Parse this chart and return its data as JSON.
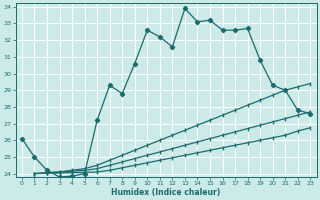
{
  "xlabel": "Humidex (Indice chaleur)",
  "bg_color": "#cceae8",
  "grid_color": "#ffffff",
  "line_color": "#1a6b6b",
  "xlim": [
    -0.5,
    23.5
  ],
  "ylim": [
    23.8,
    34.2
  ],
  "xticks": [
    0,
    1,
    2,
    3,
    4,
    5,
    6,
    7,
    8,
    9,
    10,
    11,
    12,
    13,
    14,
    15,
    16,
    17,
    18,
    19,
    20,
    21,
    22,
    23
  ],
  "yticks": [
    24,
    25,
    26,
    27,
    28,
    29,
    30,
    31,
    32,
    33,
    34
  ],
  "main_x": [
    0,
    1,
    2,
    3,
    4,
    5,
    6,
    7,
    8,
    9,
    10,
    11,
    12,
    13,
    14,
    15,
    16,
    17,
    18,
    19,
    20,
    21,
    22,
    23
  ],
  "main_y": [
    26.1,
    25.0,
    24.2,
    23.8,
    23.85,
    24.0,
    27.2,
    29.3,
    28.8,
    30.6,
    32.6,
    32.2,
    31.6,
    33.9,
    33.1,
    33.2,
    32.6,
    32.6,
    32.7,
    30.8,
    29.3,
    29.0,
    27.8,
    27.6
  ],
  "line2_x": [
    1,
    2,
    3,
    4,
    5,
    6,
    7,
    8,
    9,
    10,
    11,
    12,
    13,
    14,
    15,
    16,
    17,
    18,
    19,
    20,
    21,
    22,
    23
  ],
  "line2_y": [
    24.0,
    24.05,
    24.1,
    24.2,
    24.3,
    24.5,
    24.8,
    25.1,
    25.4,
    25.7,
    26.0,
    26.3,
    26.6,
    26.9,
    27.2,
    27.5,
    27.8,
    28.1,
    28.4,
    28.7,
    29.0,
    29.2,
    29.4
  ],
  "line3_x": [
    1,
    2,
    3,
    4,
    5,
    6,
    7,
    8,
    9,
    10,
    11,
    12,
    13,
    14,
    15,
    16,
    17,
    18,
    19,
    20,
    21,
    22,
    23
  ],
  "line3_y": [
    24.0,
    24.05,
    24.1,
    24.15,
    24.2,
    24.3,
    24.5,
    24.7,
    24.9,
    25.1,
    25.3,
    25.5,
    25.7,
    25.9,
    26.1,
    26.3,
    26.5,
    26.7,
    26.9,
    27.1,
    27.3,
    27.5,
    27.7
  ],
  "line4_x": [
    1,
    2,
    3,
    4,
    5,
    6,
    7,
    8,
    9,
    10,
    11,
    12,
    13,
    14,
    15,
    16,
    17,
    18,
    19,
    20,
    21,
    22,
    23
  ],
  "line4_y": [
    24.0,
    24.02,
    24.04,
    24.06,
    24.08,
    24.1,
    24.2,
    24.35,
    24.5,
    24.65,
    24.8,
    24.95,
    25.1,
    25.25,
    25.4,
    25.55,
    25.7,
    25.85,
    26.0,
    26.15,
    26.3,
    26.55,
    26.75
  ]
}
